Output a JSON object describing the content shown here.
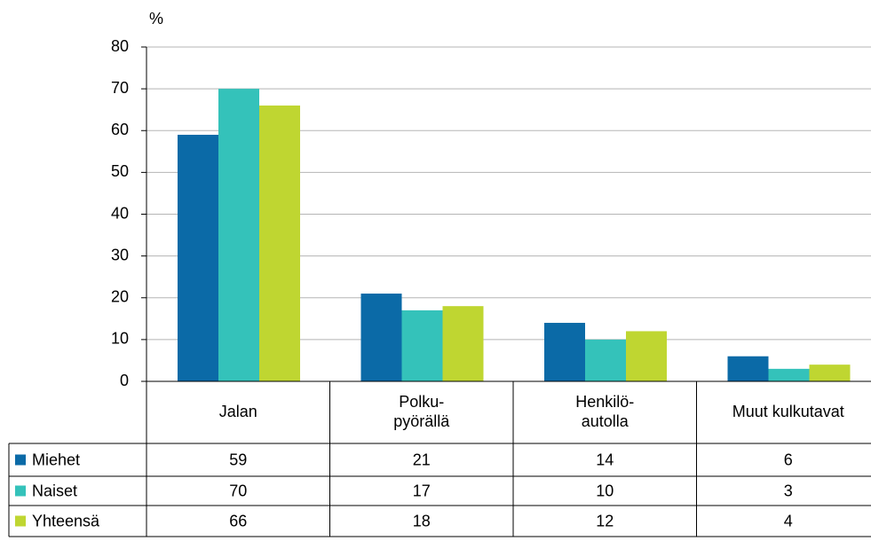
{
  "chart_data": {
    "type": "bar",
    "y_label": "%",
    "categories": [
      "Jalan",
      "Polku-\npyörällä",
      "Henkilö-\nautolla",
      "Muut kulkutavat"
    ],
    "series": [
      {
        "name": "Miehet",
        "color": "#0b6aa7",
        "values": [
          59,
          21,
          14,
          6
        ]
      },
      {
        "name": "Naiset",
        "color": "#34c2ba",
        "values": [
          70,
          17,
          10,
          3
        ]
      },
      {
        "name": "Yhteensä",
        "color": "#bfd631",
        "values": [
          66,
          18,
          12,
          4
        ]
      }
    ],
    "ylim": [
      0,
      80
    ],
    "yticks": [
      0,
      10,
      20,
      30,
      40,
      50,
      60,
      70,
      80
    ],
    "grid": true
  }
}
